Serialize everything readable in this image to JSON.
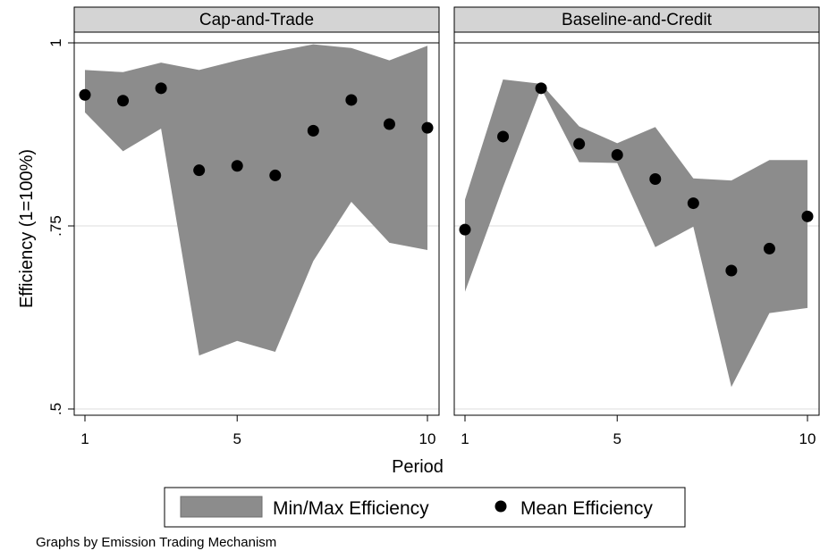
{
  "chart_data": {
    "type": "area",
    "xlabel": "Period",
    "ylabel": "Efficiency (1=100%)",
    "ylim": [
      0.5,
      1.0
    ],
    "xlim": [
      1,
      10
    ],
    "x_ticks": [
      "1",
      "5",
      "10"
    ],
    "y_ticks": [
      ".5",
      ".75",
      "1"
    ],
    "grid": "horizontal",
    "legend": {
      "position": "bottom",
      "entries": [
        {
          "label": "Min/Max Efficiency",
          "kind": "band",
          "color": "#8c8c8c"
        },
        {
          "label": "Mean Efficiency",
          "kind": "dot",
          "color": "#000000"
        }
      ]
    },
    "note": "Graphs by Emission Trading Mechanism",
    "panels": [
      {
        "title": "Cap-and-Trade",
        "x": [
          1,
          2,
          3,
          4,
          5,
          6,
          7,
          8,
          9,
          10
        ],
        "series": [
          {
            "name": "Min/Max Efficiency",
            "type": "band",
            "min": [
              0.905,
              0.852,
              0.883,
              0.573,
              0.593,
              0.578,
              0.702,
              0.783,
              0.727,
              0.717
            ],
            "max": [
              0.963,
              0.96,
              0.973,
              0.963,
              0.976,
              0.988,
              0.998,
              0.993,
              0.976,
              0.996
            ]
          },
          {
            "name": "Mean Efficiency",
            "type": "scatter",
            "values": [
              0.929,
              0.921,
              0.938,
              0.826,
              0.832,
              0.819,
              0.88,
              0.922,
              0.889,
              0.884
            ]
          }
        ]
      },
      {
        "title": "Baseline-and-Credit",
        "x": [
          1,
          2,
          3,
          4,
          5,
          6,
          7,
          8,
          9,
          10
        ],
        "series": [
          {
            "name": "Min/Max Efficiency",
            "type": "band",
            "min": [
              0.66,
              0.803,
              0.938,
              0.837,
              0.836,
              0.721,
              0.749,
              0.53,
              0.631,
              0.638
            ],
            "max": [
              0.786,
              0.95,
              0.944,
              0.886,
              0.863,
              0.885,
              0.815,
              0.812,
              0.84,
              0.84
            ]
          },
          {
            "name": "Mean Efficiency",
            "type": "scatter",
            "values": [
              0.745,
              0.872,
              0.938,
              0.862,
              0.847,
              0.814,
              0.781,
              0.689,
              0.719,
              0.763
            ]
          }
        ]
      }
    ]
  }
}
